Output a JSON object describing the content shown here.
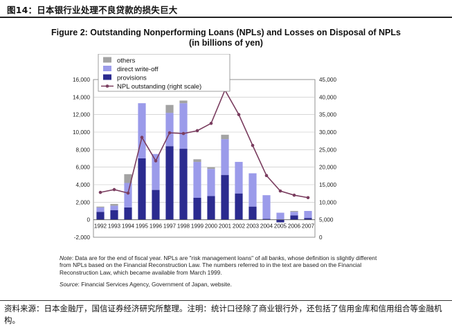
{
  "report": {
    "title": "图14：日本银行业处理不良贷款的损失巨大",
    "footer": "资料来源：日本金融厅，国信证券经济研究所整理。注明：统计口径除了商业银行外，还包括了信用金库和信用组合等金融机构。"
  },
  "figure": {
    "title_line1": "Figure 2: Outstanding Nonperforming Loans (NPLs) and Losses on Disposal of NPLs",
    "title_line2": "(in billions of yen)",
    "note_label": "Note",
    "note_text": ": Data are for the end of fiscal year. NPLs are \"risk management loans\" of all banks, whose definition is slightly different from NPLs based on the Financial Reconstruction Law. The numbers referred to in the text are based on the Financial Reconstruction Law, which became available from March 1999.",
    "source_label": "Source",
    "source_text": ": Financial Services Agency, Government of Japan, website."
  },
  "colors": {
    "others": "#a3a3a3",
    "direct_write_off": "#9b9bea",
    "provisions": "#2b2b8f",
    "npl_line": "#7a3d5f"
  },
  "chart_data": {
    "type": "bar",
    "stacked": true,
    "categories": [
      "1992",
      "1993",
      "1994",
      "1995",
      "1996",
      "1997",
      "1998",
      "1999",
      "2000",
      "2001",
      "2002",
      "2003",
      "2004",
      "2005",
      "2006",
      "2007"
    ],
    "series": [
      {
        "name": "provisions",
        "values": [
          900,
          1100,
          1400,
          7000,
          3400,
          8400,
          8100,
          2500,
          2700,
          5100,
          3000,
          1500,
          100,
          -300,
          500,
          200
        ]
      },
      {
        "name": "direct write-off",
        "values": [
          500,
          500,
          2800,
          6300,
          4100,
          3800,
          5200,
          4100,
          3100,
          4100,
          3600,
          3800,
          2700,
          800,
          400,
          800
        ]
      },
      {
        "name": "others",
        "values": [
          100,
          200,
          1000,
          0,
          0,
          900,
          300,
          300,
          200,
          500,
          0,
          0,
          0,
          0,
          100,
          0
        ]
      }
    ],
    "line_series": {
      "name": "NPL outstanding (right scale)",
      "values": [
        12800,
        13600,
        12600,
        28500,
        21800,
        29800,
        29600,
        30400,
        32500,
        42000,
        35000,
        26200,
        17600,
        13200,
        12000,
        11300
      ]
    },
    "y_left": {
      "min": -2000,
      "max": 16000,
      "step": 2000,
      "ticks": [
        "-2,000",
        "0",
        "2,000",
        "4,000",
        "6,000",
        "8,000",
        "10,000",
        "12,000",
        "14,000",
        "16,000"
      ]
    },
    "y_right": {
      "min": 0,
      "max": 45000,
      "step": 5000,
      "ticks": [
        "0",
        "5,000",
        "10,000",
        "15,000",
        "20,000",
        "25,000",
        "30,000",
        "35,000",
        "40,000",
        "45,000"
      ]
    },
    "grid": true,
    "legend": {
      "placement": "top-left",
      "items": [
        "others",
        "direct write-off",
        "provisions",
        "NPL outstanding (right scale)"
      ]
    }
  }
}
